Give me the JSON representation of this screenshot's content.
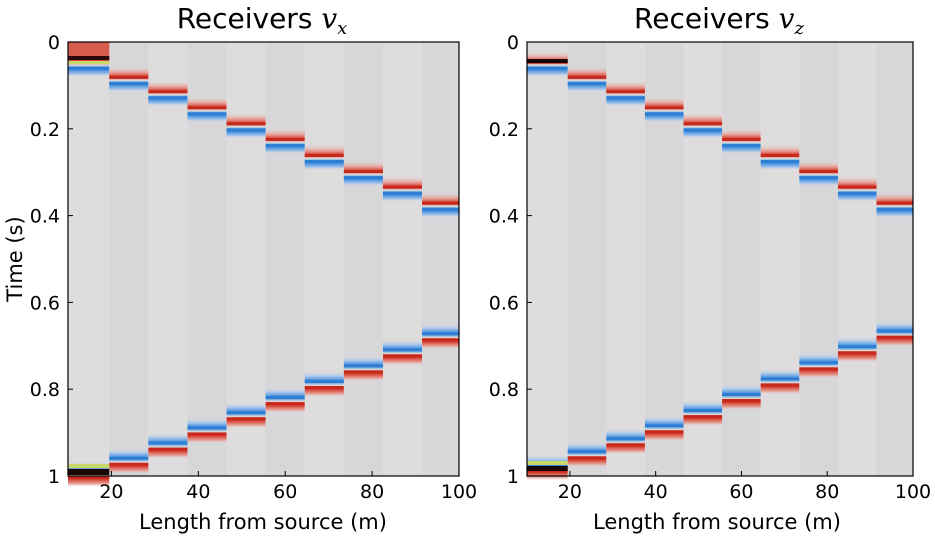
{
  "chart_data": [
    {
      "type": "heatmap",
      "title": "Receivers ",
      "title_math": "v",
      "title_sub": "x",
      "xlabel": "Length from source (m)",
      "ylabel": "Time (s)",
      "xlim": [
        10,
        100
      ],
      "ylim": [
        1.0,
        0.0
      ],
      "xticks": [
        "20",
        "40",
        "60",
        "80",
        "100"
      ],
      "yticks": [
        "0",
        "0.2",
        "0.4",
        "0.6",
        "0.8",
        "1"
      ],
      "receiver_x": [
        10,
        19.5,
        28.5,
        37.5,
        46.5,
        55.5,
        64.5,
        73.5,
        82.5,
        91.5
      ],
      "direct_wave_arrival_s": [
        0.05,
        0.085,
        0.118,
        0.155,
        0.192,
        0.228,
        0.265,
        0.302,
        0.338,
        0.375
      ],
      "reflected_wave_arrival_s": [
        0.995,
        0.965,
        0.93,
        0.895,
        0.86,
        0.825,
        0.788,
        0.752,
        0.715,
        0.678
      ],
      "colormap": [
        "#2d7fd6",
        "#dcdcdc",
        "#d23a2a"
      ],
      "background_color": "#dcdcdc"
    },
    {
      "type": "heatmap",
      "title": "Receivers ",
      "title_math": "v",
      "title_sub": "z",
      "xlabel": "Length from source (m)",
      "ylabel": "",
      "xlim": [
        10,
        100
      ],
      "ylim": [
        1.0,
        0.0
      ],
      "xticks": [
        "20",
        "40",
        "60",
        "80",
        "100"
      ],
      "yticks": [
        "0",
        "0.2",
        "0.4",
        "0.6",
        "0.8",
        "1"
      ],
      "receiver_x": [
        10,
        19.5,
        28.5,
        37.5,
        46.5,
        55.5,
        64.5,
        73.5,
        82.5,
        91.5
      ],
      "direct_wave_arrival_s": [
        0.05,
        0.085,
        0.118,
        0.155,
        0.192,
        0.228,
        0.265,
        0.302,
        0.338,
        0.375
      ],
      "reflected_wave_arrival_s": [
        0.98,
        0.95,
        0.92,
        0.89,
        0.855,
        0.818,
        0.782,
        0.745,
        0.708,
        0.672
      ],
      "colormap": [
        "#2d7fd6",
        "#dcdcdc",
        "#d23a2a"
      ],
      "background_color": "#dcdcdc"
    }
  ]
}
